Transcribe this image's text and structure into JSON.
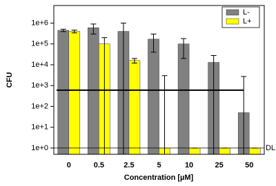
{
  "chart_data": {
    "type": "bar",
    "x_label": "Concentration [µM]",
    "y_label": "CFU",
    "categories": [
      "0",
      "0.5",
      "2.5",
      "5",
      "10",
      "25",
      "50"
    ],
    "series": [
      {
        "name": "L-",
        "color": "#808080",
        "values": [
          450000,
          600000,
          400000,
          170000,
          100000,
          13000,
          50
        ],
        "errors": [
          60000,
          300000,
          600000,
          130000,
          80000,
          15000,
          2700
        ]
      },
      {
        "name": "L+",
        "color": "#ffff00",
        "values": [
          400000,
          100000,
          16000,
          1,
          1,
          1,
          1
        ],
        "errors": [
          60000,
          100000,
          4000,
          3000,
          0,
          0,
          0
        ]
      }
    ],
    "log_scale": true,
    "ylim": [
      0.5,
      7000000
    ],
    "yticks": [
      {
        "value": 1,
        "label": "1e+0"
      },
      {
        "value": 10,
        "label": "1e+1"
      },
      {
        "value": 100,
        "label": "1e+2"
      },
      {
        "value": 1000,
        "label": "1e+3"
      },
      {
        "value": 10000,
        "label": "1e+4"
      },
      {
        "value": 100000,
        "label": "1e+5"
      },
      {
        "value": 1000000,
        "label": "1e+6"
      }
    ],
    "reference_line": 600,
    "detection_limit": {
      "value": 1,
      "label": "DL"
    },
    "legend": "top-right"
  }
}
